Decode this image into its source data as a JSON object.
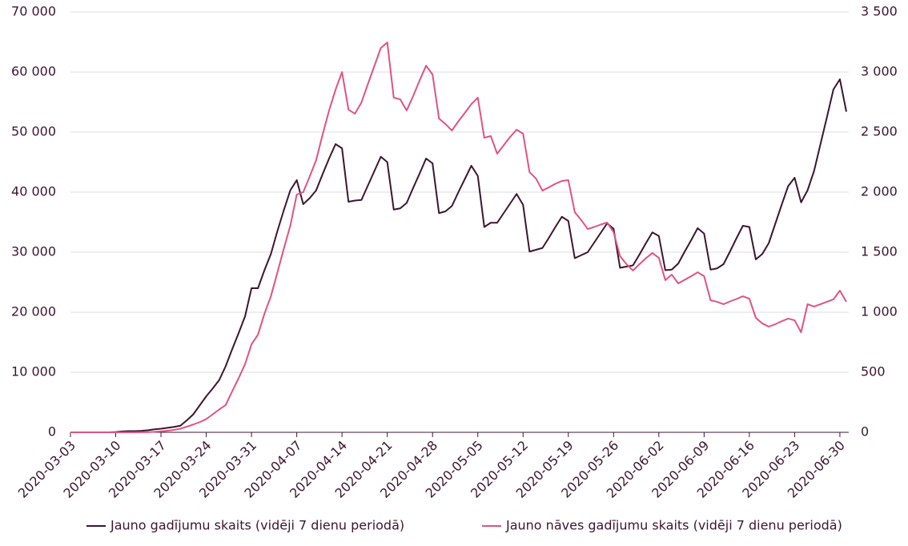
{
  "chart_data": {
    "type": "line",
    "x": [
      "2020-03-03",
      "2020-03-04",
      "2020-03-05",
      "2020-03-06",
      "2020-03-07",
      "2020-03-08",
      "2020-03-09",
      "2020-03-10",
      "2020-03-11",
      "2020-03-12",
      "2020-03-13",
      "2020-03-14",
      "2020-03-15",
      "2020-03-16",
      "2020-03-17",
      "2020-03-18",
      "2020-03-19",
      "2020-03-20",
      "2020-03-21",
      "2020-03-22",
      "2020-03-23",
      "2020-03-24",
      "2020-03-25",
      "2020-03-26",
      "2020-03-27",
      "2020-03-28",
      "2020-03-29",
      "2020-03-30",
      "2020-03-31",
      "2020-04-01",
      "2020-04-02",
      "2020-04-03",
      "2020-04-04",
      "2020-04-05",
      "2020-04-06",
      "2020-04-07",
      "2020-04-08",
      "2020-04-09",
      "2020-04-10",
      "2020-04-11",
      "2020-04-12",
      "2020-04-13",
      "2020-04-14",
      "2020-04-15",
      "2020-04-16",
      "2020-04-17",
      "2020-04-18",
      "2020-04-19",
      "2020-04-20",
      "2020-04-21",
      "2020-04-22",
      "2020-04-23",
      "2020-04-24",
      "2020-04-25",
      "2020-04-26",
      "2020-04-27",
      "2020-04-28",
      "2020-04-29",
      "2020-04-30",
      "2020-05-01",
      "2020-05-02",
      "2020-05-03",
      "2020-05-04",
      "2020-05-05",
      "2020-05-06",
      "2020-05-07",
      "2020-05-08",
      "2020-05-09",
      "2020-05-10",
      "2020-05-11",
      "2020-05-12",
      "2020-05-13",
      "2020-05-14",
      "2020-05-15",
      "2020-05-16",
      "2020-05-17",
      "2020-05-18",
      "2020-05-19",
      "2020-05-20",
      "2020-05-21",
      "2020-05-22",
      "2020-05-23",
      "2020-05-24",
      "2020-05-25",
      "2020-05-26",
      "2020-05-27",
      "2020-05-28",
      "2020-05-29",
      "2020-05-30",
      "2020-05-31",
      "2020-06-01",
      "2020-06-02",
      "2020-06-03",
      "2020-06-04",
      "2020-06-05",
      "2020-06-06",
      "2020-06-07",
      "2020-06-08",
      "2020-06-09",
      "2020-06-10",
      "2020-06-11",
      "2020-06-12",
      "2020-06-13",
      "2020-06-14",
      "2020-06-15",
      "2020-06-16",
      "2020-06-17",
      "2020-06-18",
      "2020-06-19",
      "2020-06-20",
      "2020-06-21",
      "2020-06-22",
      "2020-06-23",
      "2020-06-24",
      "2020-06-25",
      "2020-06-26",
      "2020-06-27",
      "2020-06-28",
      "2020-06-29",
      "2020-06-30",
      "2020-07-01"
    ],
    "series": [
      {
        "name": "Jauno gadījumu skaits (vidēji 7 dienu periodā)",
        "color": "#3d1530",
        "axis": "y",
        "values": [
          0,
          0,
          0,
          0,
          0,
          0,
          0,
          50,
          150,
          200,
          200,
          250,
          350,
          500,
          600,
          750,
          900,
          1100,
          2000,
          3000,
          4500,
          6000,
          7300,
          8700,
          11000,
          13800,
          16500,
          19300,
          24000,
          24000,
          27000,
          29700,
          33500,
          37000,
          40300,
          42000,
          38000,
          39000,
          40300,
          43000,
          45600,
          48000,
          47300,
          38400,
          38600,
          38700,
          41100,
          43500,
          45900,
          45000,
          37100,
          37300,
          38200,
          40700,
          43100,
          45600,
          44800,
          36500,
          36800,
          37700,
          40000,
          42200,
          44400,
          42700,
          34200,
          34900,
          34900,
          36500,
          38100,
          39700,
          37900,
          30100,
          30400,
          30700,
          32400,
          34200,
          35900,
          35200,
          29000,
          29500,
          30000,
          31600,
          33200,
          34800,
          33900,
          27400,
          27600,
          27800,
          29600,
          31500,
          33300,
          32700,
          27000,
          27100,
          28100,
          30100,
          32000,
          34000,
          33100,
          27100,
          27300,
          28000,
          30100,
          32300,
          34400,
          34200,
          28800,
          29700,
          31500,
          34700,
          37900,
          41000,
          42400,
          38300,
          40300,
          43500,
          48000,
          52500,
          57100,
          58800,
          53400
        ]
      },
      {
        "name": "Jauno nāves gadījumu skaits (vidēji 7 dienu periodā)",
        "color": "#e05283",
        "axis": "y2",
        "values": [
          0,
          0,
          0,
          0,
          0,
          0,
          0,
          0,
          0,
          0,
          0,
          1,
          2,
          4,
          8,
          13,
          20,
          30,
          47,
          65,
          85,
          110,
          150,
          190,
          227,
          340,
          450,
          567,
          733,
          813,
          987,
          1133,
          1330,
          1530,
          1720,
          1980,
          2000,
          2130,
          2267,
          2480,
          2680,
          2853,
          3000,
          2687,
          2653,
          2747,
          2900,
          3050,
          3200,
          3247,
          2787,
          2773,
          2680,
          2800,
          2930,
          3053,
          2980,
          2613,
          2567,
          2513,
          2590,
          2660,
          2733,
          2787,
          2453,
          2467,
          2320,
          2390,
          2460,
          2520,
          2487,
          2167,
          2113,
          2013,
          2040,
          2070,
          2093,
          2100,
          1833,
          1767,
          1693,
          1710,
          1730,
          1747,
          1667,
          1467,
          1400,
          1347,
          1400,
          1450,
          1493,
          1453,
          1267,
          1313,
          1240,
          1270,
          1300,
          1333,
          1300,
          1100,
          1087,
          1067,
          1090,
          1110,
          1133,
          1113,
          953,
          907,
          880,
          900,
          925,
          947,
          933,
          833,
          1067,
          1047,
          1067,
          1087,
          1107,
          1180,
          1087
        ]
      }
    ],
    "xlim": [
      "2020-03-03",
      "2020-07-01"
    ],
    "xticks": [
      "2020-03-03",
      "2020-03-10",
      "2020-03-17",
      "2020-03-24",
      "2020-03-31",
      "2020-04-07",
      "2020-04-14",
      "2020-04-21",
      "2020-04-28",
      "2020-05-05",
      "2020-05-12",
      "2020-05-19",
      "2020-05-26",
      "2020-06-02",
      "2020-06-09",
      "2020-06-16",
      "2020-06-23",
      "2020-06-30"
    ],
    "ylim": [
      0,
      70000
    ],
    "yticks": [
      0,
      {
        "value": 10000,
        "label": "10 000"
      },
      {
        "value": 20000,
        "label": "20 000"
      },
      {
        "value": 30000,
        "label": "30 000"
      },
      {
        "value": 40000,
        "label": "40 000"
      },
      {
        "value": 50000,
        "label": "50 000"
      },
      {
        "value": 60000,
        "label": "60 000"
      },
      {
        "value": 70000,
        "label": "70 000"
      }
    ],
    "y2lim": [
      0,
      3500
    ],
    "y2ticks": [
      0,
      500,
      {
        "value": 1000,
        "label": "1 000"
      },
      {
        "value": 1500,
        "label": "1 500"
      },
      {
        "value": 2000,
        "label": "2 000"
      },
      {
        "value": 2500,
        "label": "2 500"
      },
      {
        "value": 3000,
        "label": "3 000"
      },
      {
        "value": 3500,
        "label": "3 500"
      }
    ],
    "grid": true,
    "legend": "bottom"
  }
}
